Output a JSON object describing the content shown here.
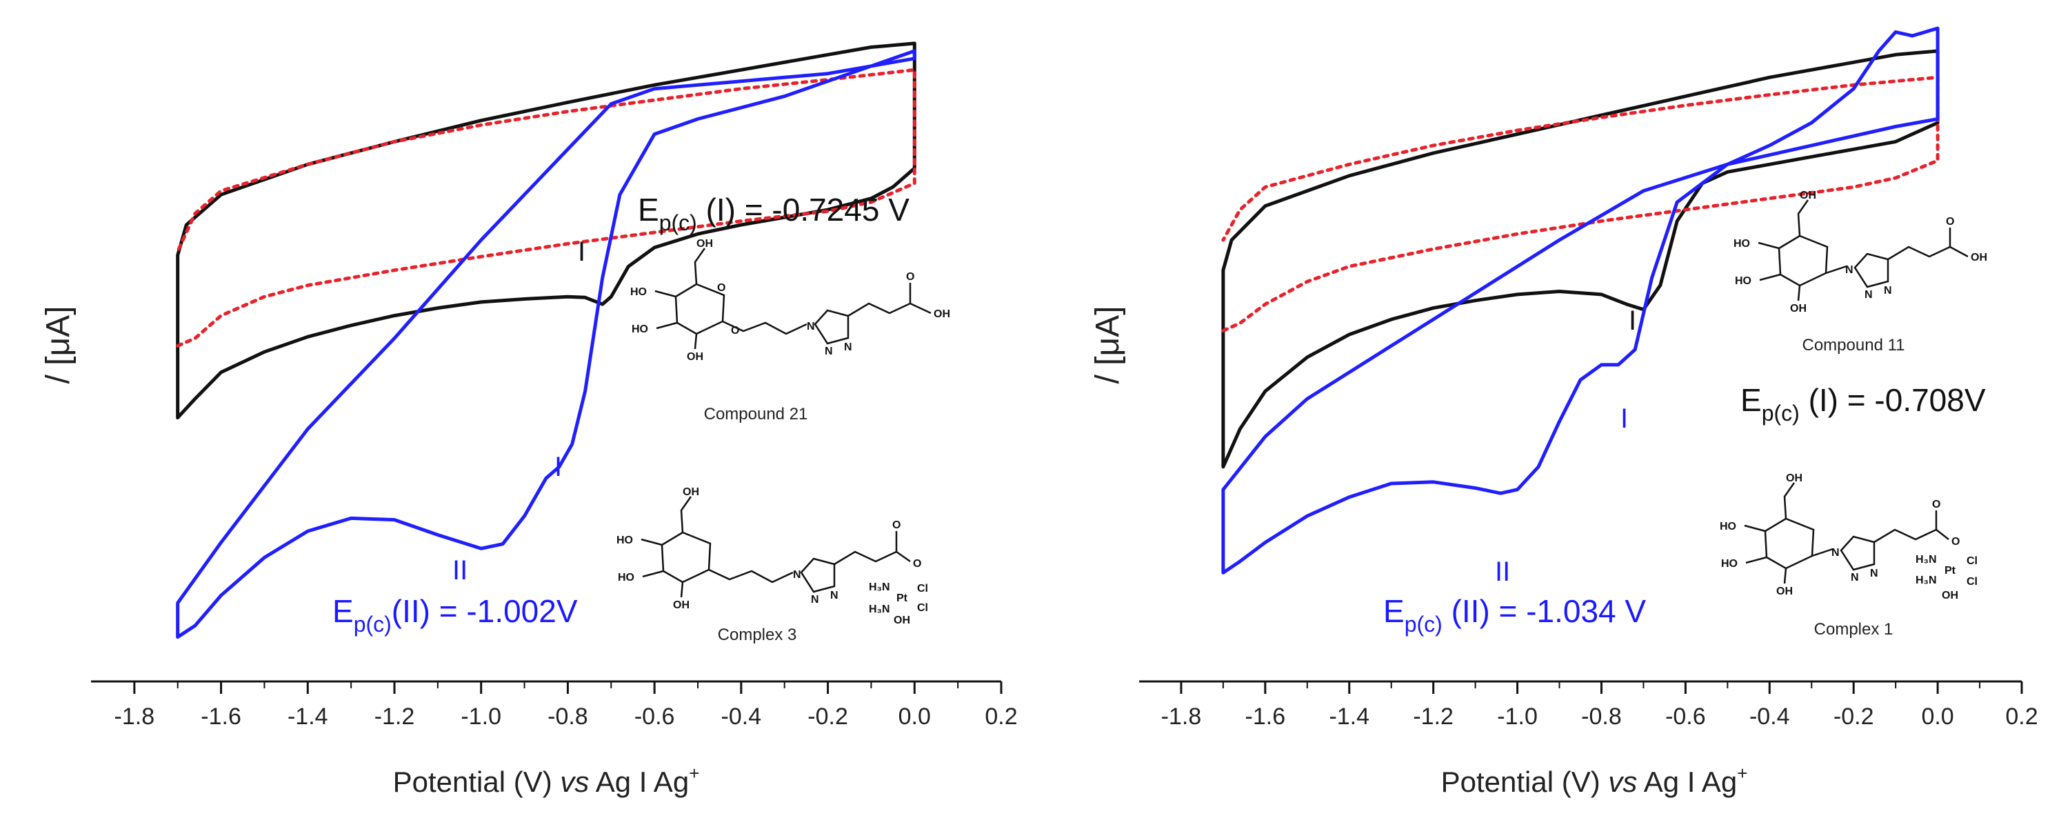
{
  "chart_data": [
    {
      "type": "line",
      "panel": "left",
      "xlabel": "Potential (V) vs Ag I Ag+",
      "xlabel_parts": {
        "pre": "Potential (V) ",
        "italic": "vs",
        "post": " Ag I Ag",
        "sup": "+"
      },
      "ylabel": "/ [μA]",
      "xlim": [
        -1.9,
        0.2
      ],
      "xticks": [
        "-1.8",
        "-1.6",
        "-1.4",
        "-1.2",
        "-1.0",
        "-0.8",
        "-0.6",
        "-0.4",
        "-0.2",
        "0.0",
        "0.2"
      ],
      "series": [
        {
          "name": "black",
          "color": "#111111",
          "dashed": false,
          "x": [
            -1.7,
            -1.66,
            -1.6,
            -1.5,
            -1.4,
            -1.3,
            -1.2,
            -1.1,
            -1.0,
            -0.9,
            -0.8,
            -0.76,
            -0.72,
            -0.7,
            -0.66,
            -0.6,
            -0.5,
            -0.4,
            -0.3,
            -0.2,
            -0.1,
            -0.05,
            0.0,
            0.0,
            -0.1,
            -0.2,
            -0.4,
            -0.6,
            -0.8,
            -1.0,
            -1.2,
            -1.4,
            -1.6,
            -1.68,
            -1.7,
            -1.7
          ],
          "y": [
            -3.55,
            -3.3,
            -2.95,
            -2.68,
            -2.48,
            -2.33,
            -2.2,
            -2.1,
            -2.02,
            -1.98,
            -1.95,
            -1.96,
            -2.05,
            -1.95,
            -1.55,
            -1.3,
            -1.12,
            -1.0,
            -0.9,
            -0.8,
            -0.65,
            -0.5,
            -0.25,
            1.4,
            1.35,
            1.25,
            1.05,
            0.85,
            0.62,
            0.38,
            0.1,
            -0.2,
            -0.6,
            -1.0,
            -1.4,
            -3.55
          ]
        },
        {
          "name": "red",
          "color": "#e8222a",
          "dashed": true,
          "x": [
            -1.7,
            -1.66,
            -1.6,
            -1.5,
            -1.4,
            -1.2,
            -1.0,
            -0.8,
            -0.6,
            -0.4,
            -0.2,
            -0.1,
            0.0,
            0.0,
            -0.2,
            -0.4,
            -0.6,
            -0.8,
            -1.0,
            -1.2,
            -1.4,
            -1.6,
            -1.66,
            -1.7
          ],
          "y": [
            -2.6,
            -2.5,
            -2.2,
            -1.95,
            -1.8,
            -1.6,
            -1.42,
            -1.25,
            -1.1,
            -0.95,
            -0.82,
            -0.7,
            -0.45,
            1.05,
            0.92,
            0.8,
            0.65,
            0.5,
            0.32,
            0.1,
            -0.2,
            -0.55,
            -0.85,
            -1.35
          ]
        },
        {
          "name": "blue",
          "color": "#1f1fff",
          "dashed": false,
          "x": [
            -1.7,
            -1.66,
            -1.6,
            -1.5,
            -1.4,
            -1.3,
            -1.2,
            -1.1,
            -1.0,
            -0.95,
            -0.9,
            -0.85,
            -0.82,
            -0.79,
            -0.76,
            -0.72,
            -0.68,
            -0.6,
            -0.5,
            -0.4,
            -0.3,
            -0.2,
            -0.1,
            0.0,
            0.0,
            -0.1,
            -0.2,
            -0.4,
            -0.6,
            -0.7,
            -0.8,
            -1.0,
            -1.2,
            -1.4,
            -1.6,
            -1.7,
            -1.7
          ],
          "y": [
            -6.45,
            -6.3,
            -5.9,
            -5.4,
            -5.05,
            -4.88,
            -4.9,
            -5.1,
            -5.28,
            -5.22,
            -4.85,
            -4.35,
            -4.2,
            -3.9,
            -3.2,
            -1.7,
            -0.6,
            0.2,
            0.4,
            0.55,
            0.7,
            0.9,
            1.1,
            1.3,
            1.2,
            1.1,
            1.0,
            0.9,
            0.8,
            0.6,
            0.0,
            -1.2,
            -2.5,
            -3.7,
            -5.2,
            -6.0,
            -6.45
          ]
        }
      ]
    },
    {
      "type": "line",
      "panel": "right",
      "xlabel": "Potential (V) vs Ag I Ag+",
      "xlabel_parts": {
        "pre": "Potential (V) ",
        "italic": "vs",
        "post": " Ag I Ag",
        "sup": "+"
      },
      "ylabel": "/ [μA]",
      "xlim": [
        -1.9,
        0.2
      ],
      "xticks": [
        "-1.8",
        "-1.6",
        "-1.4",
        "-1.2",
        "-1.0",
        "-0.8",
        "-0.6",
        "-0.4",
        "-0.2",
        "0.0",
        "0.2"
      ],
      "series": [
        {
          "name": "black",
          "color": "#111111",
          "dashed": false,
          "x": [
            -1.7,
            -1.66,
            -1.6,
            -1.5,
            -1.4,
            -1.3,
            -1.2,
            -1.1,
            -1.0,
            -0.9,
            -0.8,
            -0.74,
            -0.7,
            -0.66,
            -0.62,
            -0.56,
            -0.5,
            -0.4,
            -0.3,
            -0.2,
            -0.1,
            0.0,
            0.0,
            -0.1,
            -0.2,
            -0.4,
            -0.6,
            -0.8,
            -1.0,
            -1.2,
            -1.4,
            -1.6,
            -1.68,
            -1.7,
            -1.7
          ],
          "y": [
            -4.2,
            -3.7,
            -3.2,
            -2.75,
            -2.45,
            -2.25,
            -2.1,
            -2.0,
            -1.92,
            -1.88,
            -1.92,
            -2.05,
            -2.12,
            -1.8,
            -0.95,
            -0.45,
            -0.3,
            -0.2,
            -0.1,
            0.0,
            0.1,
            0.35,
            1.3,
            1.25,
            1.15,
            0.95,
            0.7,
            0.45,
            0.2,
            -0.05,
            -0.35,
            -0.75,
            -1.2,
            -1.6,
            -4.2
          ]
        },
        {
          "name": "red",
          "color": "#e8222a",
          "dashed": true,
          "x": [
            -1.7,
            -1.66,
            -1.6,
            -1.5,
            -1.4,
            -1.2,
            -1.0,
            -0.8,
            -0.6,
            -0.4,
            -0.2,
            -0.1,
            0.0,
            0.0,
            -0.2,
            -0.4,
            -0.6,
            -0.8,
            -1.0,
            -1.2,
            -1.4,
            -1.6,
            -1.66,
            -1.7
          ],
          "y": [
            -2.4,
            -2.3,
            -2.05,
            -1.75,
            -1.55,
            -1.32,
            -1.12,
            -0.95,
            -0.8,
            -0.65,
            -0.5,
            -0.38,
            -0.15,
            0.95,
            0.85,
            0.72,
            0.58,
            0.42,
            0.25,
            0.05,
            -0.2,
            -0.5,
            -0.8,
            -1.2
          ]
        },
        {
          "name": "blue",
          "color": "#1f1fff",
          "dashed": false,
          "x": [
            -1.7,
            -1.66,
            -1.6,
            -1.5,
            -1.4,
            -1.3,
            -1.2,
            -1.1,
            -1.04,
            -1.0,
            -0.95,
            -0.9,
            -0.85,
            -0.8,
            -0.76,
            -0.72,
            -0.68,
            -0.62,
            -0.5,
            -0.4,
            -0.3,
            -0.2,
            -0.14,
            -0.1,
            -0.06,
            0.0,
            0.0,
            -0.1,
            -0.3,
            -0.5,
            -0.7,
            -0.9,
            -1.1,
            -1.3,
            -1.5,
            -1.6,
            -1.7,
            -1.7
          ],
          "y": [
            -5.6,
            -5.45,
            -5.2,
            -4.85,
            -4.6,
            -4.42,
            -4.4,
            -4.48,
            -4.55,
            -4.5,
            -4.2,
            -3.6,
            -3.05,
            -2.85,
            -2.85,
            -2.65,
            -1.7,
            -0.7,
            -0.2,
            0.05,
            0.35,
            0.8,
            1.3,
            1.55,
            1.5,
            1.6,
            0.4,
            0.3,
            0.05,
            -0.2,
            -0.55,
            -1.2,
            -1.9,
            -2.6,
            -3.3,
            -3.8,
            -4.5,
            -5.6
          ]
        }
      ]
    }
  ],
  "left": {
    "peak_black_I": "I",
    "peak_blue_I": "I",
    "peak_blue_II": "II",
    "ep_black": {
      "pre": "E",
      "sub": "p(c)",
      "post": " (I) = -0.7245 V"
    },
    "ep_blue": {
      "pre": "E",
      "sub": "p(c)",
      "post": "(II) = -1.002V"
    },
    "compound_label": "Compound 21",
    "complex_label": "Complex 3"
  },
  "right": {
    "peak_black_I": "I",
    "peak_blue_I": "I",
    "peak_blue_II": "II",
    "ep_black": {
      "pre": "E",
      "sub": "p(c)",
      "post": " (I) = -0.708V"
    },
    "ep_blue": {
      "pre": "E",
      "sub": "p(c)",
      "post": " (II) = -1.034 V"
    },
    "compound_label": "Compound 11",
    "complex_label": "Complex 1"
  },
  "atoms": {
    "HO": "HO",
    "OH": "OH",
    "O": "O",
    "N": "N",
    "Cl": "Cl",
    "Pt": "Pt",
    "H3N": "H₃N"
  }
}
